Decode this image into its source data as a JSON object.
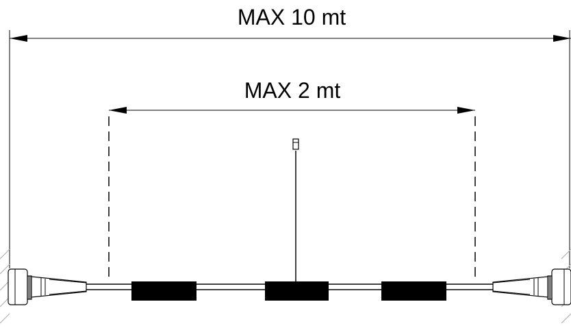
{
  "dimensions": {
    "overall_label": "MAX 10 mt",
    "inner_label": "MAX 2 mt"
  },
  "colors": {
    "line": "#000000",
    "hatch": "#b3b3b3",
    "background": "#ffffff"
  }
}
